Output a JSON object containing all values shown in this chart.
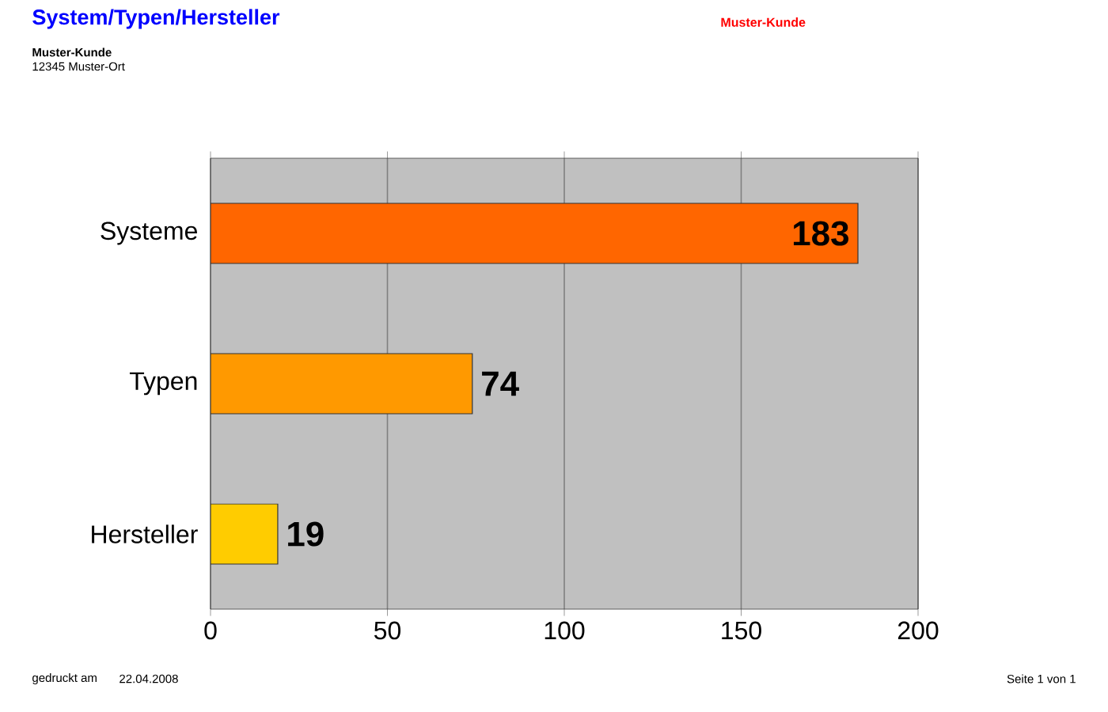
{
  "chart_data": {
    "type": "bar",
    "orientation": "horizontal",
    "title": "System/Typen/Hersteller",
    "categories": [
      "Systeme",
      "Typen",
      "Hersteller"
    ],
    "values": [
      183,
      74,
      19
    ],
    "colors": [
      "#ff6600",
      "#ff9900",
      "#ffcc00"
    ],
    "xlim": [
      0,
      200
    ],
    "xticks": [
      0,
      50,
      100,
      150,
      200
    ],
    "grid": "x",
    "data_labels": true,
    "annotations": [
      "Muster-Kunde",
      "Muster-Kunde",
      "12345 Muster-Ort",
      "gedruckt am",
      "22.04.2008",
      "Seite 1 von 1"
    ]
  }
}
